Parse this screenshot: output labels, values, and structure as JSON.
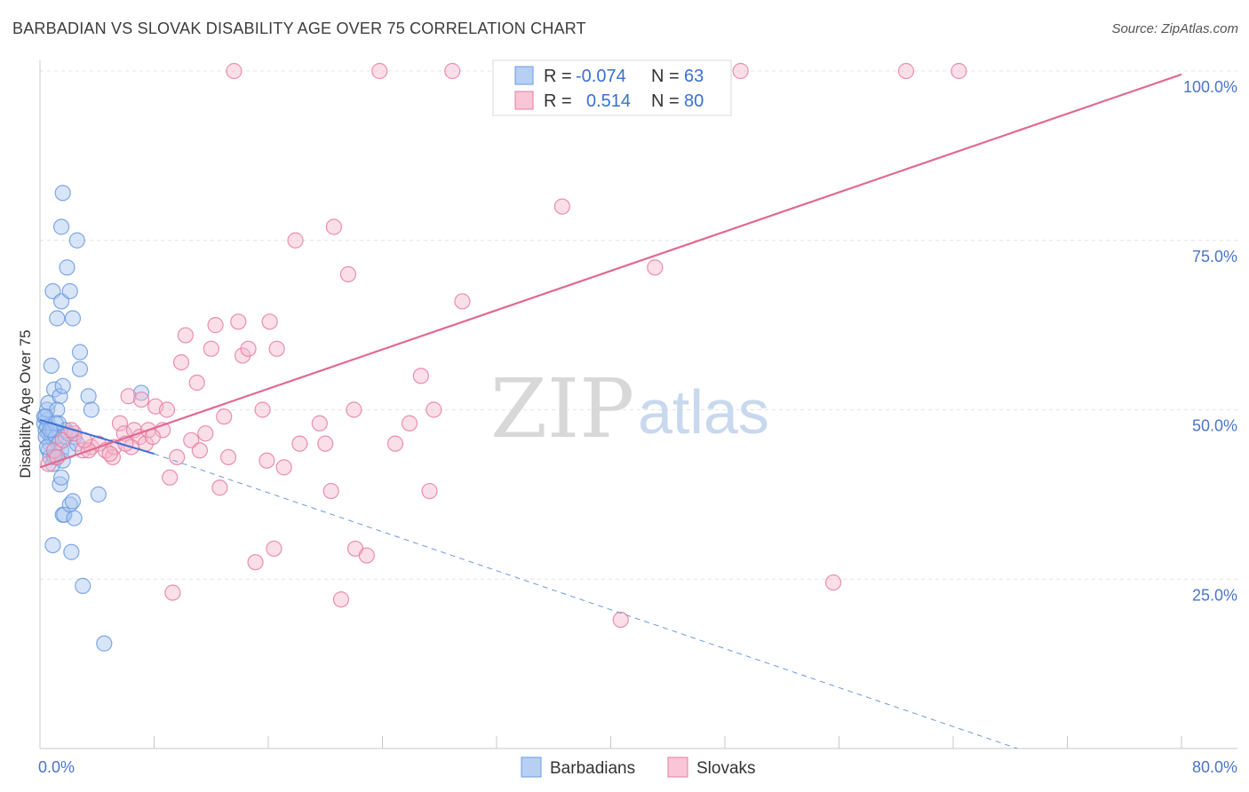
{
  "title": "BARBADIAN VS SLOVAK DISABILITY AGE OVER 75 CORRELATION CHART",
  "source": "Source: ZipAtlas.com",
  "watermark": {
    "zip": "ZIP",
    "atlas": "atlas"
  },
  "legend": {
    "r_label": "R =",
    "n_label": "N =",
    "rows": [
      {
        "r": "-0.074",
        "n": "63"
      },
      {
        "r": "0.514",
        "n": "80"
      }
    ]
  },
  "chart_data": {
    "type": "scatter",
    "title": "BARBADIAN VS SLOVAK DISABILITY AGE OVER 75 CORRELATION CHART",
    "xlabel": "",
    "ylabel": "Disability Age Over 75",
    "xlim": [
      0,
      80
    ],
    "ylim": [
      0,
      100
    ],
    "x_tick_labels": [
      "0.0%",
      "80.0%"
    ],
    "y_ticks": [
      25,
      50,
      75,
      100
    ],
    "y_tick_labels": [
      "25.0%",
      "50.0%",
      "75.0%",
      "100.0%"
    ],
    "grid": true,
    "legend_position": "top-center",
    "series": [
      {
        "name": "Barbadians",
        "color": "#6a9ae0",
        "fill": "#a9c6f0",
        "trend": {
          "x": [
            0,
            8
          ],
          "y": [
            48.5,
            43.5
          ],
          "dashed_extension_to": [
            68.5,
            0
          ]
        },
        "points": [
          [
            0.3,
            48
          ],
          [
            0.4,
            47
          ],
          [
            0.5,
            48.5
          ],
          [
            0.6,
            46.5
          ],
          [
            0.7,
            45
          ],
          [
            0.3,
            49
          ],
          [
            0.5,
            47.5
          ],
          [
            0.8,
            46
          ],
          [
            0.4,
            46
          ],
          [
            0.6,
            44
          ],
          [
            0.9,
            47
          ],
          [
            1.1,
            46
          ],
          [
            0.7,
            43
          ],
          [
            0.9,
            42
          ],
          [
            1.3,
            45
          ],
          [
            1.5,
            44
          ],
          [
            1.2,
            43
          ],
          [
            1.6,
            42.5
          ],
          [
            2.0,
            44
          ],
          [
            0.5,
            50
          ],
          [
            0.6,
            51
          ],
          [
            1.0,
            53
          ],
          [
            1.4,
            52
          ],
          [
            1.6,
            53.5
          ],
          [
            1.2,
            50
          ],
          [
            0.8,
            56.5
          ],
          [
            0.9,
            67.5
          ],
          [
            1.2,
            63.5
          ],
          [
            1.5,
            66
          ],
          [
            1.9,
            71
          ],
          [
            2.1,
            67.5
          ],
          [
            2.3,
            63.5
          ],
          [
            2.6,
            75
          ],
          [
            1.5,
            77
          ],
          [
            1.6,
            82
          ],
          [
            2.8,
            58.5
          ],
          [
            2.8,
            56
          ],
          [
            3.4,
            52
          ],
          [
            3.6,
            50
          ],
          [
            1.4,
            39
          ],
          [
            1.5,
            40
          ],
          [
            1.6,
            34.5
          ],
          [
            1.7,
            34.5
          ],
          [
            2.1,
            36
          ],
          [
            2.3,
            36.5
          ],
          [
            2.4,
            34
          ],
          [
            0.9,
            30
          ],
          [
            2.2,
            29
          ],
          [
            3.0,
            24
          ],
          [
            4.1,
            37.5
          ],
          [
            4.5,
            15.5
          ],
          [
            7.1,
            52.5
          ],
          [
            1.3,
            48
          ],
          [
            1.8,
            46
          ],
          [
            2.4,
            46
          ],
          [
            0.5,
            44.5
          ],
          [
            1.0,
            43
          ],
          [
            1.8,
            47
          ],
          [
            2.6,
            45
          ],
          [
            0.4,
            49
          ],
          [
            1.1,
            48
          ],
          [
            0.7,
            47
          ],
          [
            2.0,
            46.5
          ]
        ]
      },
      {
        "name": "Slovaks",
        "color": "#e87ca0",
        "fill": "#f5b8cc",
        "trend": {
          "x": [
            0,
            80
          ],
          "y": [
            41.5,
            99.5
          ]
        },
        "points": [
          [
            0.6,
            42
          ],
          [
            1.0,
            44
          ],
          [
            1.6,
            45.5
          ],
          [
            2.4,
            46.5
          ],
          [
            3.0,
            44
          ],
          [
            3.6,
            44.5
          ],
          [
            4.1,
            45
          ],
          [
            4.6,
            44
          ],
          [
            5.1,
            43
          ],
          [
            5.2,
            44.5
          ],
          [
            5.6,
            48
          ],
          [
            5.9,
            46.5
          ],
          [
            6.2,
            52
          ],
          [
            6.6,
            47
          ],
          [
            7.0,
            46
          ],
          [
            7.1,
            51.5
          ],
          [
            7.4,
            45
          ],
          [
            7.6,
            47
          ],
          [
            8.1,
            50.5
          ],
          [
            8.6,
            47
          ],
          [
            8.9,
            50
          ],
          [
            9.1,
            40
          ],
          [
            9.6,
            43
          ],
          [
            9.9,
            57
          ],
          [
            10.2,
            61
          ],
          [
            10.6,
            45.5
          ],
          [
            11.0,
            54
          ],
          [
            11.6,
            46.5
          ],
          [
            12.0,
            59
          ],
          [
            12.3,
            62.5
          ],
          [
            12.6,
            38.5
          ],
          [
            12.9,
            49
          ],
          [
            13.2,
            43
          ],
          [
            13.6,
            100
          ],
          [
            13.9,
            63
          ],
          [
            14.2,
            58
          ],
          [
            14.6,
            59
          ],
          [
            15.1,
            27.5
          ],
          [
            15.6,
            50
          ],
          [
            15.9,
            42.5
          ],
          [
            16.1,
            63
          ],
          [
            16.4,
            29.5
          ],
          [
            16.6,
            59
          ],
          [
            17.1,
            41.5
          ],
          [
            17.9,
            75
          ],
          [
            18.2,
            45
          ],
          [
            19.6,
            48
          ],
          [
            20.0,
            45
          ],
          [
            20.4,
            38
          ],
          [
            20.6,
            77
          ],
          [
            21.1,
            22
          ],
          [
            21.6,
            70
          ],
          [
            22.0,
            50
          ],
          [
            22.1,
            29.5
          ],
          [
            22.9,
            28.5
          ],
          [
            23.8,
            100
          ],
          [
            24.9,
            45
          ],
          [
            25.9,
            48
          ],
          [
            26.7,
            55
          ],
          [
            27.3,
            38
          ],
          [
            27.6,
            50
          ],
          [
            28.9,
            100
          ],
          [
            29.6,
            66
          ],
          [
            36.6,
            80
          ],
          [
            40.7,
            19
          ],
          [
            43.1,
            71
          ],
          [
            49.1,
            100
          ],
          [
            60.7,
            100
          ],
          [
            64.4,
            100
          ],
          [
            55.6,
            24.5
          ],
          [
            3.4,
            44
          ],
          [
            4.9,
            43.5
          ],
          [
            6.4,
            44.5
          ],
          [
            7.9,
            46
          ],
          [
            2.2,
            47
          ],
          [
            1.2,
            43
          ],
          [
            11.2,
            44
          ],
          [
            9.3,
            23
          ],
          [
            6.0,
            45
          ],
          [
            3.1,
            45.5
          ]
        ]
      }
    ]
  }
}
